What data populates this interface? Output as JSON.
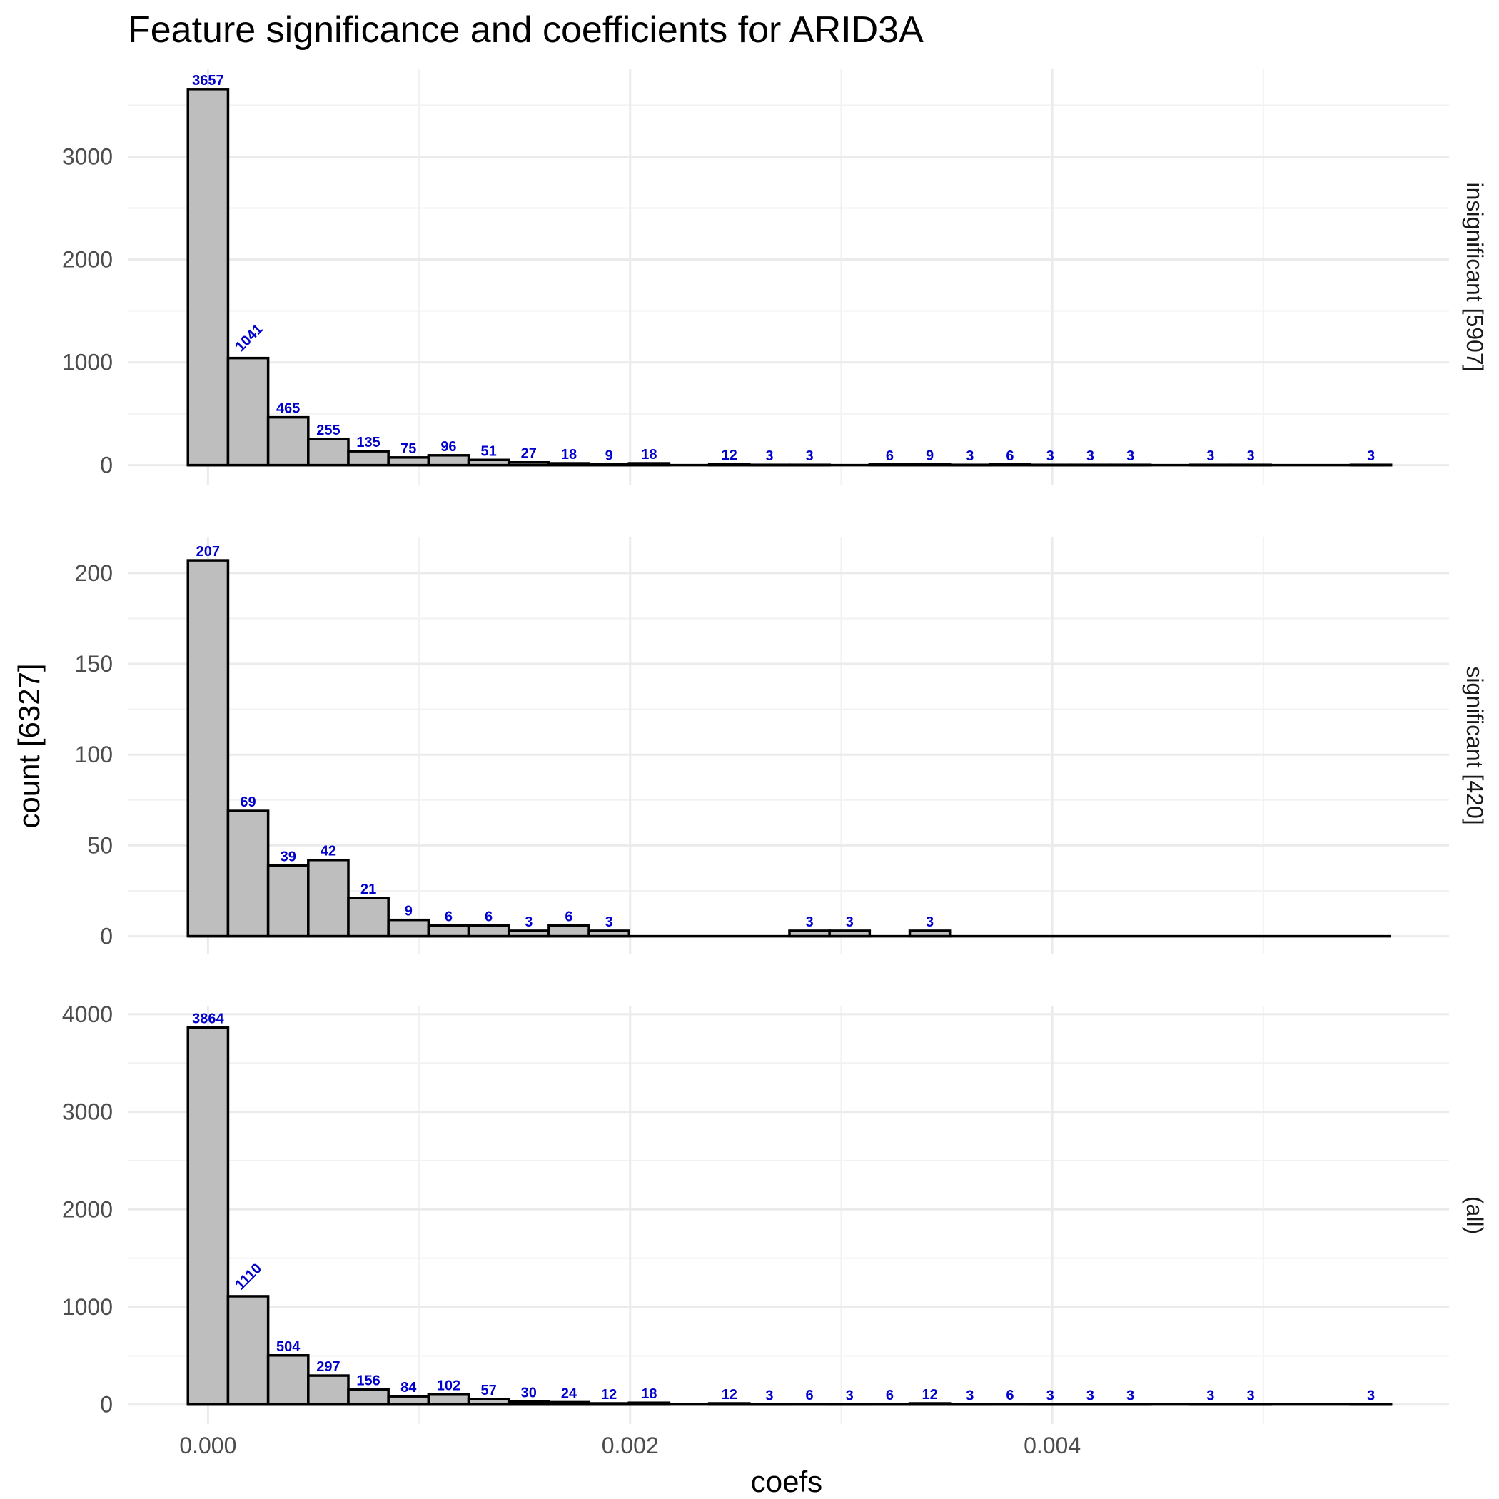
{
  "chart_data": {
    "type": "bar",
    "title": "Feature significance and coefficients for ARID3A",
    "xlabel": "coefs",
    "ylabel": "count [6327]",
    "xlim": [
      -0.00038,
      0.00588
    ],
    "x_ticks": [
      0,
      0.002,
      0.004
    ],
    "x_tick_labels": [
      "0.000",
      "0.002",
      "0.004"
    ],
    "bin_width": 0.00019,
    "bin_start": -9.5e-05,
    "grid": true,
    "panels": [
      {
        "label": "insignificant [5907]",
        "ylim": [
          -190,
          3850
        ],
        "y_ticks": [
          0,
          1000,
          2000,
          3000
        ],
        "y_tick_labels": [
          "0",
          "1000",
          "2000",
          "3000"
        ],
        "bins": [
          {
            "i": 0,
            "count": 3657,
            "label": "3657"
          },
          {
            "i": 1,
            "count": 1041,
            "label": "1041",
            "rotate": true
          },
          {
            "i": 2,
            "count": 465,
            "label": "465"
          },
          {
            "i": 3,
            "count": 255,
            "label": "255"
          },
          {
            "i": 4,
            "count": 135,
            "label": "135"
          },
          {
            "i": 5,
            "count": 75,
            "label": "75"
          },
          {
            "i": 6,
            "count": 96,
            "label": "96"
          },
          {
            "i": 7,
            "count": 51,
            "label": "51"
          },
          {
            "i": 8,
            "count": 27,
            "label": "27"
          },
          {
            "i": 9,
            "count": 18,
            "label": "18"
          },
          {
            "i": 10,
            "count": 9,
            "label": "9"
          },
          {
            "i": 11,
            "count": 18,
            "label": "18"
          },
          {
            "i": 13,
            "count": 12,
            "label": "12"
          },
          {
            "i": 14,
            "count": 3,
            "label": "3"
          },
          {
            "i": 15,
            "count": 3,
            "label": "3"
          },
          {
            "i": 17,
            "count": 6,
            "label": "6"
          },
          {
            "i": 18,
            "count": 9,
            "label": "9"
          },
          {
            "i": 19,
            "count": 3,
            "label": "3"
          },
          {
            "i": 20,
            "count": 6,
            "label": "6"
          },
          {
            "i": 21,
            "count": 3,
            "label": "3"
          },
          {
            "i": 22,
            "count": 3,
            "label": "3"
          },
          {
            "i": 23,
            "count": 3,
            "label": "3"
          },
          {
            "i": 25,
            "count": 3,
            "label": "3"
          },
          {
            "i": 26,
            "count": 3,
            "label": "3"
          },
          {
            "i": 29,
            "count": 3,
            "label": "3"
          }
        ]
      },
      {
        "label": "significant [420]",
        "ylim": [
          -10,
          220
        ],
        "y_ticks": [
          0,
          50,
          100,
          150,
          200
        ],
        "y_tick_labels": [
          "0",
          "50",
          "100",
          "150",
          "200"
        ],
        "bins": [
          {
            "i": 0,
            "count": 207,
            "label": "207"
          },
          {
            "i": 1,
            "count": 69,
            "label": "69"
          },
          {
            "i": 2,
            "count": 39,
            "label": "39"
          },
          {
            "i": 3,
            "count": 42,
            "label": "42"
          },
          {
            "i": 4,
            "count": 21,
            "label": "21"
          },
          {
            "i": 5,
            "count": 9,
            "label": "9"
          },
          {
            "i": 6,
            "count": 6,
            "label": "6"
          },
          {
            "i": 7,
            "count": 6,
            "label": "6"
          },
          {
            "i": 8,
            "count": 3,
            "label": "3"
          },
          {
            "i": 9,
            "count": 6,
            "label": "6"
          },
          {
            "i": 10,
            "count": 3,
            "label": "3"
          },
          {
            "i": 15,
            "count": 3,
            "label": "3"
          },
          {
            "i": 16,
            "count": 3,
            "label": "3"
          },
          {
            "i": 18,
            "count": 3,
            "label": "3"
          }
        ]
      },
      {
        "label": "(all)",
        "ylim": [
          -200,
          4080
        ],
        "y_ticks": [
          0,
          1000,
          2000,
          3000,
          4000
        ],
        "y_tick_labels": [
          "0",
          "1000",
          "2000",
          "3000",
          "4000"
        ],
        "bins": [
          {
            "i": 0,
            "count": 3864,
            "label": "3864"
          },
          {
            "i": 1,
            "count": 1110,
            "label": "1110",
            "rotate": true
          },
          {
            "i": 2,
            "count": 504,
            "label": "504"
          },
          {
            "i": 3,
            "count": 297,
            "label": "297"
          },
          {
            "i": 4,
            "count": 156,
            "label": "156"
          },
          {
            "i": 5,
            "count": 84,
            "label": "84"
          },
          {
            "i": 6,
            "count": 102,
            "label": "102"
          },
          {
            "i": 7,
            "count": 57,
            "label": "57"
          },
          {
            "i": 8,
            "count": 30,
            "label": "30"
          },
          {
            "i": 9,
            "count": 24,
            "label": "24"
          },
          {
            "i": 10,
            "count": 12,
            "label": "12"
          },
          {
            "i": 11,
            "count": 18,
            "label": "18"
          },
          {
            "i": 13,
            "count": 12,
            "label": "12"
          },
          {
            "i": 14,
            "count": 3,
            "label": "3"
          },
          {
            "i": 15,
            "count": 6,
            "label": "6"
          },
          {
            "i": 16,
            "count": 3,
            "label": "3"
          },
          {
            "i": 17,
            "count": 6,
            "label": "6"
          },
          {
            "i": 18,
            "count": 12,
            "label": "12"
          },
          {
            "i": 19,
            "count": 3,
            "label": "3"
          },
          {
            "i": 20,
            "count": 6,
            "label": "6"
          },
          {
            "i": 21,
            "count": 3,
            "label": "3"
          },
          {
            "i": 22,
            "count": 3,
            "label": "3"
          },
          {
            "i": 23,
            "count": 3,
            "label": "3"
          },
          {
            "i": 25,
            "count": 3,
            "label": "3"
          },
          {
            "i": 26,
            "count": 3,
            "label": "3"
          },
          {
            "i": 29,
            "count": 3,
            "label": "3"
          }
        ]
      }
    ]
  }
}
